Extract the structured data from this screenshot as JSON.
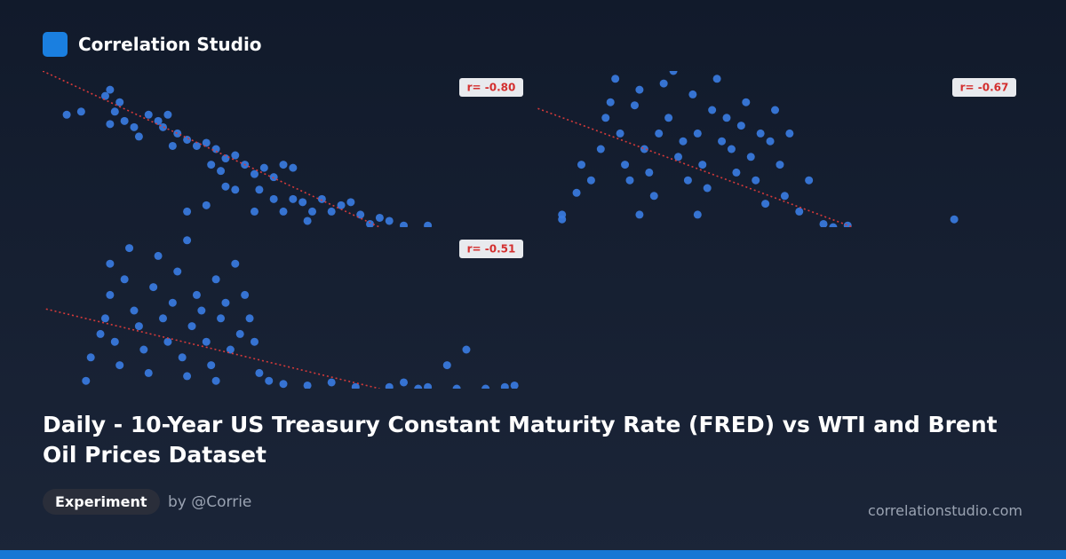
{
  "header": {
    "brand": "Correlation Studio"
  },
  "title": "Daily - 10-Year US Treasury Constant Maturity Rate (FRED) vs WTI and Brent Oil Prices Dataset",
  "footer": {
    "tag": "Experiment",
    "author": "by @Corrie",
    "site": "correlationstudio.com"
  },
  "chart_data": [
    {
      "type": "scatter",
      "color": "#3a7be0",
      "annotation": "r= -0.80",
      "xlim": [
        0,
        100
      ],
      "ylim": [
        0,
        100
      ],
      "trendline": {
        "color": "#d63a3a",
        "x": [
          0,
          70
        ],
        "y": [
          100,
          0
        ]
      },
      "x": [
        5,
        8,
        13,
        14,
        16,
        15,
        14,
        17,
        19,
        20,
        22,
        24,
        25,
        26,
        28,
        30,
        27,
        32,
        34,
        36,
        38,
        40,
        35,
        37,
        42,
        44,
        46,
        48,
        50,
        52,
        45,
        40,
        38,
        48,
        52,
        54,
        56,
        60,
        58,
        62,
        64,
        66,
        70,
        72,
        75,
        80,
        30,
        34,
        50,
        55,
        68,
        44
      ],
      "y": [
        72,
        74,
        84,
        88,
        80,
        74,
        66,
        68,
        64,
        58,
        72,
        68,
        64,
        72,
        60,
        56,
        52,
        52,
        54,
        50,
        44,
        46,
        40,
        36,
        40,
        34,
        38,
        32,
        40,
        38,
        24,
        24,
        26,
        18,
        18,
        16,
        10,
        10,
        18,
        14,
        16,
        8,
        6,
        4,
        1,
        1,
        10,
        14,
        10,
        4,
        2,
        10
      ]
    },
    {
      "type": "scatter",
      "color": "#3a7be0",
      "annotation": "r= -0.67",
      "xlim": [
        0,
        100
      ],
      "ylim": [
        0,
        100
      ],
      "trendline": {
        "color": "#d63a3a",
        "x": [
          1,
          66
        ],
        "y": [
          76,
          0
        ]
      },
      "x": [
        6,
        6,
        9,
        10,
        12,
        14,
        15,
        16,
        17,
        18,
        19,
        20,
        21,
        22,
        23,
        24,
        25,
        26,
        27,
        28,
        29,
        30,
        31,
        32,
        33,
        34,
        35,
        36,
        37,
        38,
        39,
        40,
        41,
        42,
        43,
        44,
        45,
        46,
        47,
        48,
        49,
        50,
        51,
        52,
        53,
        55,
        57,
        60,
        62,
        65,
        87,
        34,
        22
      ],
      "y": [
        8,
        5,
        22,
        40,
        30,
        50,
        70,
        80,
        95,
        60,
        40,
        30,
        78,
        88,
        50,
        35,
        20,
        60,
        92,
        70,
        100,
        45,
        55,
        30,
        85,
        60,
        40,
        25,
        75,
        95,
        55,
        70,
        50,
        35,
        65,
        80,
        45,
        30,
        60,
        15,
        55,
        75,
        40,
        20,
        60,
        10,
        30,
        2,
        0,
        1,
        5,
        8,
        8
      ]
    },
    {
      "type": "scatter",
      "color": "#3a7be0",
      "annotation": "r= -0.51",
      "xlim": [
        0,
        100
      ],
      "ylim": [
        0,
        100
      ],
      "trendline": {
        "color": "#d63a3a",
        "x": [
          0.7,
          70
        ],
        "y": [
          51,
          0
        ]
      },
      "x": [
        9,
        10,
        12,
        13,
        14,
        14,
        15,
        16,
        17,
        18,
        19,
        20,
        21,
        22,
        23,
        24,
        25,
        26,
        27,
        28,
        29,
        30,
        31,
        32,
        33,
        34,
        35,
        36,
        37,
        38,
        39,
        40,
        41,
        42,
        43,
        44,
        45,
        47,
        50,
        55,
        60,
        65,
        72,
        75,
        78,
        80,
        84,
        86,
        88,
        92,
        96,
        98,
        36,
        30
      ],
      "y": [
        5,
        20,
        35,
        45,
        60,
        80,
        30,
        15,
        70,
        90,
        50,
        40,
        25,
        10,
        65,
        85,
        45,
        30,
        55,
        75,
        20,
        95,
        40,
        60,
        50,
        30,
        15,
        70,
        45,
        55,
        25,
        80,
        35,
        60,
        45,
        30,
        10,
        5,
        3,
        2,
        4,
        1,
        1,
        4,
        0,
        1,
        15,
        0,
        25,
        0,
        1,
        2,
        5,
        8
      ]
    }
  ]
}
